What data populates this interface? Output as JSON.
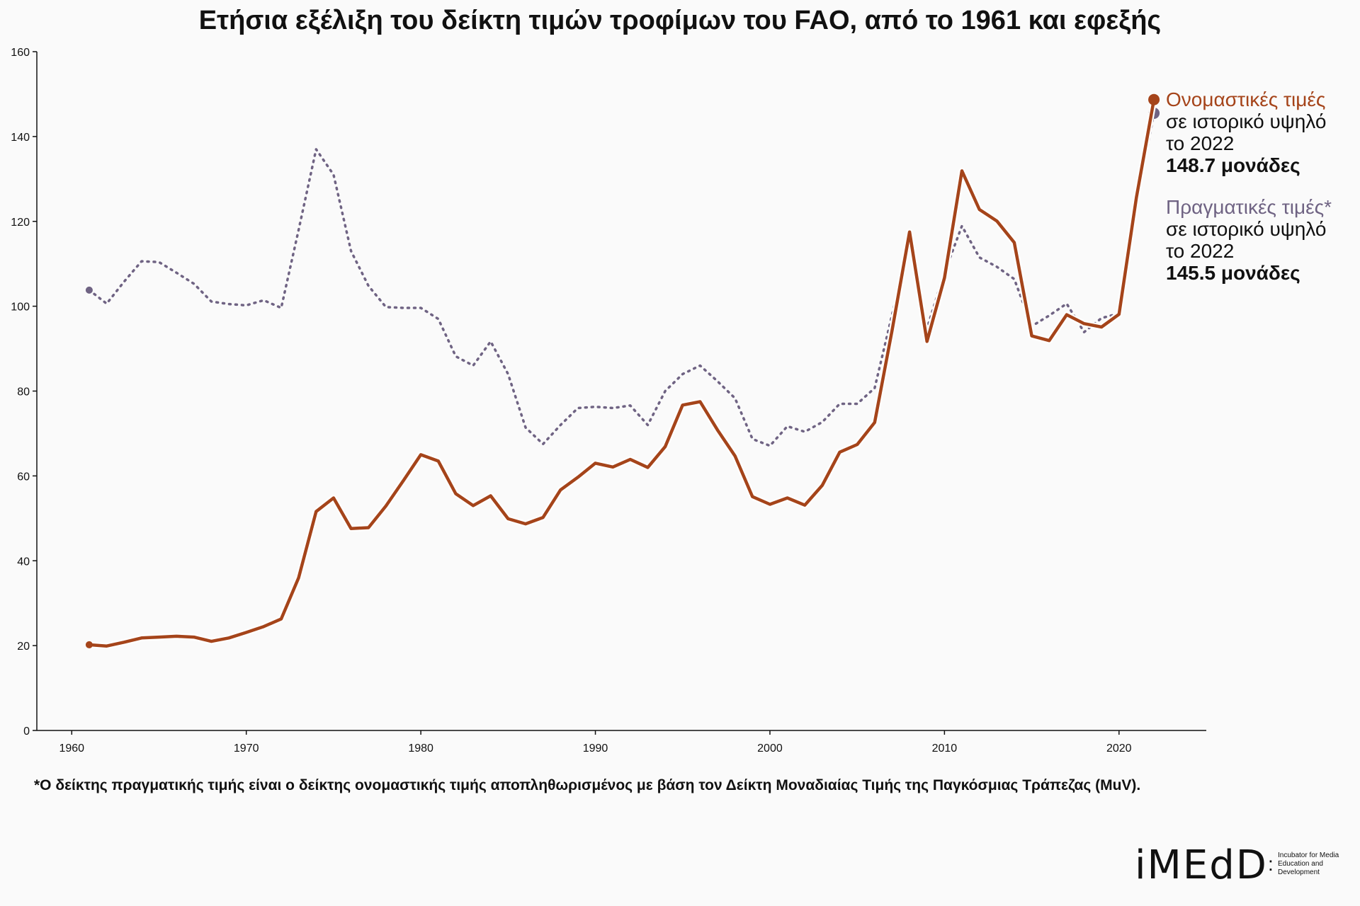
{
  "chart_data": {
    "type": "line",
    "title": "Ετήσια εξέλιξη του δείκτη τιμών τροφίμων του FAO, από το 1961 και εφεξής",
    "xlabel": "",
    "ylabel": "",
    "xlim": [
      1958,
      2025
    ],
    "ylim": [
      0,
      160
    ],
    "x_ticks": [
      1960,
      1970,
      1980,
      1990,
      2000,
      2010,
      2020
    ],
    "y_ticks": [
      0,
      20,
      40,
      60,
      80,
      100,
      120,
      140,
      160
    ],
    "grid": false,
    "x": [
      1961,
      1962,
      1963,
      1964,
      1965,
      1966,
      1967,
      1968,
      1969,
      1970,
      1971,
      1972,
      1973,
      1974,
      1975,
      1976,
      1977,
      1978,
      1979,
      1980,
      1981,
      1982,
      1983,
      1984,
      1985,
      1986,
      1987,
      1988,
      1989,
      1990,
      1991,
      1992,
      1993,
      1994,
      1995,
      1996,
      1997,
      1998,
      1999,
      2000,
      2001,
      2002,
      2003,
      2004,
      2005,
      2006,
      2007,
      2008,
      2009,
      2010,
      2011,
      2012,
      2013,
      2014,
      2015,
      2016,
      2017,
      2018,
      2019,
      2020,
      2021,
      2022
    ],
    "series": [
      {
        "name": "Ονομαστικές τιμές",
        "color": "#a5441a",
        "style": "solid",
        "values": [
          20.2,
          19.9,
          20.8,
          21.8,
          22.0,
          22.2,
          22.0,
          21.0,
          21.8,
          23.1,
          24.5,
          26.3,
          36.0,
          51.6,
          54.8,
          47.6,
          47.8,
          52.9,
          58.9,
          65.0,
          63.5,
          55.8,
          53.0,
          55.3,
          49.9,
          48.7,
          50.2,
          56.7,
          59.7,
          63.0,
          62.1,
          63.9,
          62.0,
          66.9,
          76.7,
          77.5,
          70.8,
          64.7,
          55.1,
          53.3,
          54.8,
          53.1,
          57.8,
          65.6,
          67.4,
          72.6,
          94.3,
          117.5,
          91.7,
          106.7,
          131.9,
          122.8,
          120.1,
          115.0,
          93.0,
          91.9,
          98.0,
          95.9,
          95.1,
          98.1,
          125.7,
          148.7
        ],
        "end_label": "148.7 μονάδες"
      },
      {
        "name": "Πραγματικές τιμές*",
        "color": "#6f6383",
        "style": "dotted",
        "values": [
          103.8,
          100.6,
          105.8,
          110.6,
          110.4,
          107.9,
          105.3,
          101.1,
          100.5,
          100.2,
          101.4,
          99.6,
          118.0,
          137.0,
          131.0,
          113.0,
          104.8,
          99.8,
          99.6,
          99.6,
          97.0,
          88.2,
          86.0,
          91.7,
          84.0,
          71.4,
          67.5,
          72.0,
          76.0,
          76.3,
          76.0,
          76.6,
          72.0,
          80.0,
          84.0,
          86.0,
          82.3,
          78.3,
          68.7,
          67.1,
          71.7,
          70.4,
          72.7,
          77.0,
          77.0,
          80.7,
          98.0,
          114.3,
          94.8,
          107.9,
          118.9,
          111.5,
          109.3,
          106.4,
          95.3,
          97.8,
          100.6,
          93.9,
          97.2,
          98.3,
          124.3,
          145.5
        ],
        "end_label": "145.5 μονάδες"
      }
    ],
    "annotations": {
      "nominal": {
        "headline": "Ονομαστικές τιμές",
        "text1": "σε ιστορικό υψηλό",
        "text2": "το 2022",
        "value": "148.7 μονάδες"
      },
      "real": {
        "headline": "Πραγματικές τιμές*",
        "text1": "σε ιστορικό υψηλό",
        "text2": "το 2022",
        "value": "145.5 μονάδες"
      }
    }
  },
  "footnote": "*Ο δείκτης πραγματικής τιμής είναι ο δείκτης ονομαστικής τιμής αποπληθωρισμένος με βάση τον Δείκτη Μοναδιαίας Τιμής της Παγκόσμιας Τράπεζας (MuV).",
  "logo": {
    "mark": "iMEdD",
    "tagline": "Incubator for Media Education and Development"
  }
}
